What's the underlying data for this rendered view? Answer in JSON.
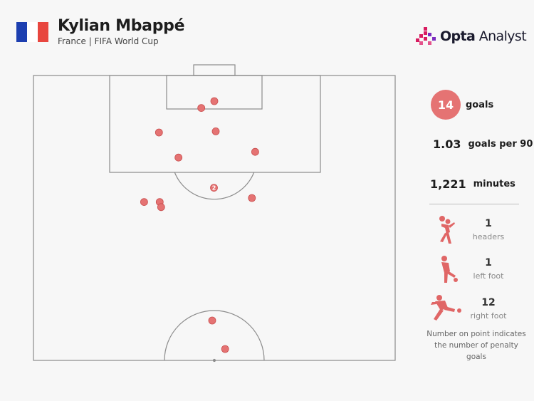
{
  "header": {
    "title": "Kylian Mbappé",
    "subtitle": "France | FIFA World Cup",
    "flag_colors": [
      "#1d3fb0",
      "#ffffff",
      "#e8463f"
    ]
  },
  "brand": {
    "bold": "Opta",
    "light": " Analyst",
    "accent": "#d81b60",
    "icon": "opta-bars-icon"
  },
  "colors": {
    "shot": "#e57373",
    "shot_stroke": "#c94f4f",
    "pitch_line": "#8c8c8c",
    "icon": "#e06666"
  },
  "stats": {
    "goals": {
      "value": "14",
      "label": "goals"
    },
    "per90": {
      "value": "1.03",
      "label": "goals per 90"
    },
    "minutes": {
      "value": "1,221",
      "label": "minutes"
    }
  },
  "breakdown": [
    {
      "count": "1",
      "label": "headers",
      "icon": "header-player-icon"
    },
    {
      "count": "1",
      "label": "left foot",
      "icon": "left-foot-player-icon"
    },
    {
      "count": "12",
      "label": "right foot",
      "icon": "right-foot-player-icon"
    }
  ],
  "note": "Number on point indicates the number of penalty goals",
  "chart_data": {
    "type": "scatter",
    "title": "Kylian Mbappé",
    "xlabel": "",
    "ylabel": "",
    "description_units": "pitch percent: x = 0 left touchline to 100 right touchline, y = 0 goal line to 50 halfway line",
    "xlim": [
      0,
      100
    ],
    "ylim": [
      0,
      50
    ],
    "points": [
      {
        "x": 46.4,
        "y": 5.7,
        "label": ""
      },
      {
        "x": 50.0,
        "y": 4.5,
        "label": ""
      },
      {
        "x": 34.7,
        "y": 10.0,
        "label": ""
      },
      {
        "x": 50.4,
        "y": 9.8,
        "label": ""
      },
      {
        "x": 40.1,
        "y": 14.4,
        "label": ""
      },
      {
        "x": 61.3,
        "y": 13.4,
        "label": ""
      },
      {
        "x": 49.9,
        "y": 19.7,
        "label": "2"
      },
      {
        "x": 30.6,
        "y": 22.2,
        "label": ""
      },
      {
        "x": 34.9,
        "y": 22.2,
        "label": ""
      },
      {
        "x": 35.3,
        "y": 23.1,
        "label": ""
      },
      {
        "x": 60.4,
        "y": 21.5,
        "label": ""
      },
      {
        "x": 49.4,
        "y": 43.0,
        "label": ""
      },
      {
        "x": 53.0,
        "y": 48.0,
        "label": ""
      }
    ]
  }
}
